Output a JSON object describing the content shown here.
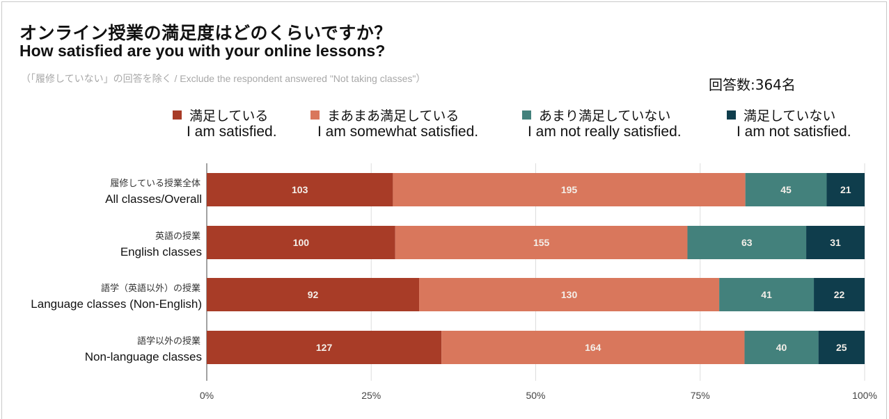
{
  "title_jp": "オンライン授業の満足度はどのくらいですか？",
  "title_en": "How satisfied are you with your online lessons?",
  "subtitle": "（「履修していない」の回答を除く / Exclude the respondent answered \"Not taking classes\"）",
  "respondents": "回答数:364名",
  "chart_data": {
    "type": "bar",
    "orientation": "horizontal",
    "stacked": "percent",
    "title": "オンライン授業の満足度はどのくらいですか？ / How satisfied are you with your online lessons?",
    "categories": [
      {
        "jp": "履修している授業全体",
        "en": "All classes/Overall"
      },
      {
        "jp": "英語の授業",
        "en": "English classes"
      },
      {
        "jp": "語学（英語以外）の授業",
        "en": "Language classes (Non-English)"
      },
      {
        "jp": "語学以外の授業",
        "en": "Non-language classes"
      }
    ],
    "series": [
      {
        "name_jp": "満足している",
        "name_en": "I am satisfied.",
        "color": "#a83c27",
        "values": [
          103,
          100,
          92,
          127
        ]
      },
      {
        "name_jp": "まあまあ満足している",
        "name_en": "I am somewhat satisfied.",
        "color": "#d9775c",
        "values": [
          195,
          155,
          130,
          164
        ]
      },
      {
        "name_jp": "あまり満足していない",
        "name_en": "I am not really satisfied.",
        "color": "#43817c",
        "values": [
          45,
          63,
          41,
          40
        ]
      },
      {
        "name_jp": "満足していない",
        "name_en": "I am not satisfied.",
        "color": "#0f3d4c",
        "values": [
          21,
          31,
          22,
          25
        ]
      }
    ],
    "x_ticks": [
      "0%",
      "25%",
      "50%",
      "75%",
      "100%"
    ],
    "xlim": [
      0,
      100
    ],
    "grid": true,
    "legend_position": "top"
  }
}
